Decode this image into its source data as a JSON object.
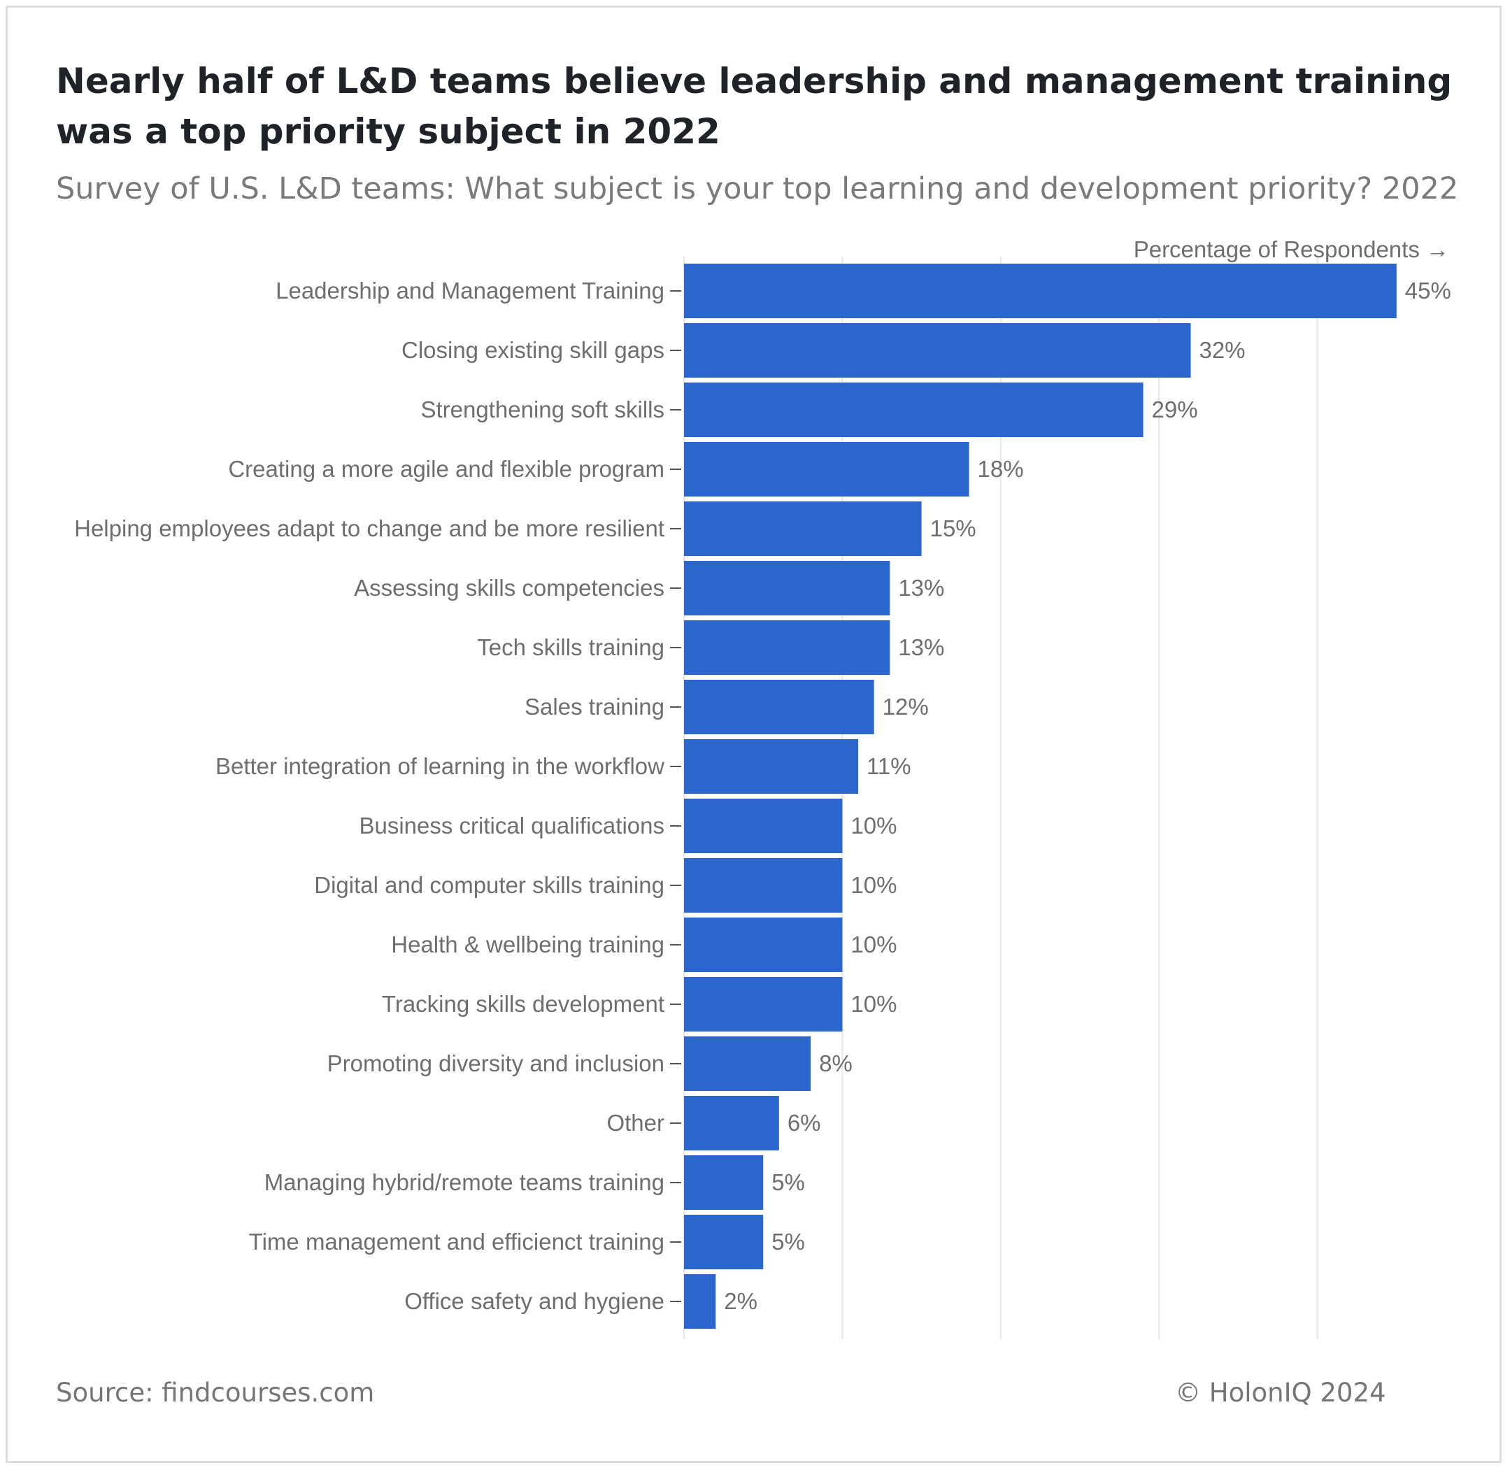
{
  "header": {
    "title": "Nearly half of L&D teams believe leadership and management training was a top priority subject in 2022",
    "subtitle": "Survey of U.S. L&D teams: What subject is your top learning and development priority? 2022"
  },
  "footer": {
    "source": "Source: findcourses.com",
    "copyright": "© HolonIQ 2024"
  },
  "colors": {
    "bar": "#2a66cc",
    "grid": "#e6e6e6",
    "label": "#6e6e6e",
    "tick": "#555555"
  },
  "chart_data": {
    "type": "bar",
    "orientation": "horizontal",
    "title": "Nearly half of L&D teams believe leadership and management training was a top priority subject in 2022",
    "xlabel": "Percentage of Respondents →",
    "ylabel": "",
    "xlim": [
      0,
      50
    ],
    "gridlines_at": [
      0,
      10,
      20,
      30,
      40
    ],
    "grid": true,
    "categories": [
      "Leadership and Management Training",
      "Closing existing skill gaps",
      "Strengthening soft skills",
      "Creating a more agile and flexible program",
      "Helping employees adapt to change and be more resilient",
      "Assessing skills competencies",
      "Tech skills training",
      "Sales training",
      "Better integration of learning in the workflow",
      "Business critical qualifications",
      "Digital and computer skills training",
      "Health & wellbeing training",
      "Tracking skills development",
      "Promoting diversity and inclusion",
      "Other",
      "Managing hybrid/remote teams training",
      "Time management and efficienct training",
      "Office safety and hygiene"
    ],
    "values": [
      45,
      32,
      29,
      18,
      15,
      13,
      13,
      12,
      11,
      10,
      10,
      10,
      10,
      8,
      6,
      5,
      5,
      2
    ],
    "value_labels": [
      "45%",
      "32%",
      "29%",
      "18%",
      "15%",
      "13%",
      "13%",
      "12%",
      "11%",
      "10%",
      "10%",
      "10%",
      "10%",
      "8%",
      "6%",
      "5%",
      "5%",
      "2%"
    ]
  }
}
